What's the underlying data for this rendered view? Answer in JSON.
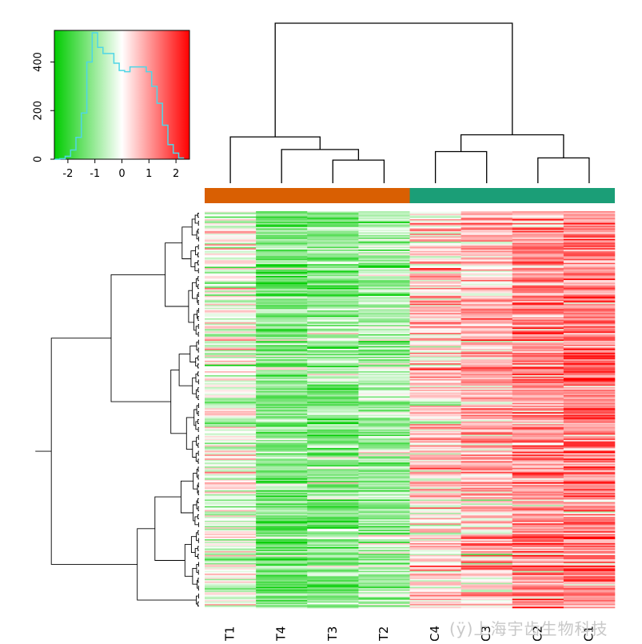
{
  "chart_data": [
    {
      "type": "bar",
      "role": "color-key histogram",
      "title": "",
      "xlabel": "",
      "ylabel": "",
      "xlim": [
        -2.5,
        2.5
      ],
      "ylim": [
        0,
        530
      ],
      "xticks": [
        "-2",
        "-1",
        "0",
        "1",
        "2"
      ],
      "yticks": [
        "0",
        "200",
        "400"
      ],
      "line_color": "#4fd6e6",
      "colorscale": [
        "#00cc00",
        "#ffffff",
        "#ff0000"
      ],
      "bins": [
        {
          "x": -2.4,
          "value": 0
        },
        {
          "x": -2.2,
          "value": 2
        },
        {
          "x": -2.0,
          "value": 12
        },
        {
          "x": -1.8,
          "value": 38
        },
        {
          "x": -1.6,
          "value": 90
        },
        {
          "x": -1.4,
          "value": 190
        },
        {
          "x": -1.2,
          "value": 400
        },
        {
          "x": -1.0,
          "value": 520
        },
        {
          "x": -0.8,
          "value": 460
        },
        {
          "x": -0.6,
          "value": 435
        },
        {
          "x": -0.4,
          "value": 435
        },
        {
          "x": -0.2,
          "value": 395
        },
        {
          "x": 0.0,
          "value": 365
        },
        {
          "x": 0.2,
          "value": 360
        },
        {
          "x": 0.4,
          "value": 380
        },
        {
          "x": 0.6,
          "value": 380
        },
        {
          "x": 0.8,
          "value": 380
        },
        {
          "x": 1.0,
          "value": 360
        },
        {
          "x": 1.2,
          "value": 300
        },
        {
          "x": 1.4,
          "value": 230
        },
        {
          "x": 1.6,
          "value": 140
        },
        {
          "x": 1.8,
          "value": 60
        },
        {
          "x": 2.0,
          "value": 25
        },
        {
          "x": 2.2,
          "value": 5
        }
      ]
    },
    {
      "type": "heatmap",
      "title": "",
      "columns": [
        "T1",
        "T4",
        "T3",
        "T2",
        "C4",
        "C3",
        "C2",
        "C1"
      ],
      "column_groups": [
        {
          "columns": [
            "T1",
            "T4",
            "T3",
            "T2"
          ],
          "color": "#d95f02"
        },
        {
          "columns": [
            "C4",
            "C3",
            "C2",
            "C1"
          ],
          "color": "#1b9e77"
        }
      ],
      "row_count": 300,
      "column_means": [
        -0.2,
        -1.3,
        -1.1,
        -0.9,
        0.3,
        0.6,
        1.1,
        1.2
      ],
      "colorscale": [
        "#00cc00",
        "#ffffff",
        "#ff0000"
      ],
      "value_range": [
        -2.5,
        2.5
      ],
      "column_dendrogram": {
        "merges": [
          {
            "id": "m1",
            "left": "T3",
            "right": "T2",
            "height": 0.55
          },
          {
            "id": "m2",
            "left": "T4",
            "right": "m1",
            "height": 0.8
          },
          {
            "id": "m3",
            "left": "T1",
            "right": "m2",
            "height": 1.1
          },
          {
            "id": "m4",
            "left": "C4",
            "right": "C3",
            "height": 0.75
          },
          {
            "id": "m5",
            "left": "C2",
            "right": "C1",
            "height": 0.6
          },
          {
            "id": "m6",
            "left": "m4",
            "right": "m5",
            "height": 1.15
          },
          {
            "id": "m7",
            "left": "m3",
            "right": "m6",
            "height": 3.8
          }
        ],
        "max_height": 3.8
      }
    }
  ],
  "watermark": "(ÿ)上海宇齿生物科技"
}
